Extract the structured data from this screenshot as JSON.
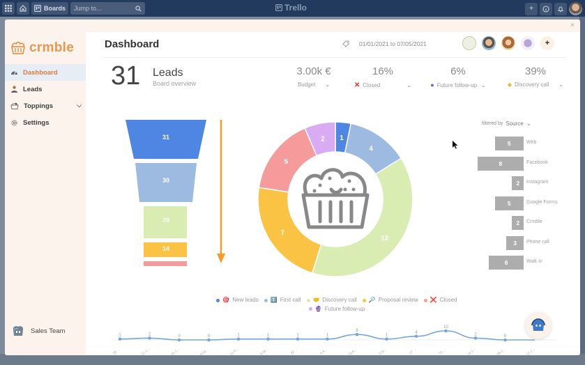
{
  "trello_bar": {
    "boards_label": "Boards",
    "search_placeholder": "Jump to...",
    "logo": "Trello",
    "icons": [
      "apps-grid-icon",
      "home-icon",
      "board-icon",
      "search-icon",
      "plus-icon",
      "info-icon",
      "bell-icon",
      "user-avatar"
    ]
  },
  "modal": {
    "close_icon": "×"
  },
  "sidebar": {
    "brand": "crmble",
    "items": [
      {
        "label": "Dashboard",
        "icon": "gauge-icon",
        "active": true
      },
      {
        "label": "Leads",
        "icon": "person-icon",
        "active": false
      },
      {
        "label": "Toppings",
        "icon": "basket-icon",
        "active": false,
        "has_chevron": true
      },
      {
        "label": "Settings",
        "icon": "gear-icon",
        "active": false
      }
    ],
    "team": "Sales Team"
  },
  "header": {
    "title": "Dashboard",
    "date_range": "01/01/2021 to 07/05/2021",
    "add_member": "+"
  },
  "kpis": {
    "leads_count": "31",
    "leads_label": "Leads",
    "leads_sub": "Board overview",
    "items": [
      {
        "value": "3.00k €",
        "label": "Budget",
        "icon": ""
      },
      {
        "value": "16%",
        "label": "Closed",
        "icon": "✕"
      },
      {
        "value": "6%",
        "label": "Future follow-up",
        "icon": "●"
      },
      {
        "value": "39%",
        "label": "Discovery call",
        "icon": "◆"
      }
    ]
  },
  "colors": {
    "new_leads": "#4f86e3",
    "first_call": "#9dbbe0",
    "discovery_call": "#d9ecb1",
    "proposal_review": "#fbc344",
    "closed": "#f59b9b",
    "future_follow_up": "#d8abf3",
    "brand": "#e8974f",
    "source_bar": "#adadad",
    "timeline": "#79a6d6"
  },
  "chart_data": [
    {
      "type": "funnel",
      "title": "Lead funnel",
      "categories": [
        "New leads",
        "First call",
        "Discovery call",
        "Proposal review",
        "Closed"
      ],
      "values": [
        31,
        30,
        20,
        14,
        5
      ],
      "labels": [
        "31",
        "30",
        "20",
        "14",
        ""
      ]
    },
    {
      "type": "pie",
      "subtype": "donut",
      "categories": [
        "New leads",
        "First call",
        "Discovery call",
        "Proposal review",
        "Closed",
        "Future follow-up"
      ],
      "values": [
        1,
        4,
        12,
        7,
        5,
        2
      ]
    },
    {
      "type": "bar",
      "orientation": "horizontal",
      "title": "filtered by Source",
      "filter_label": "filtered by",
      "filter_value": "Source",
      "categories": [
        "Web",
        "Facebook",
        "Instagram",
        "Google Forms",
        "Crmble",
        "Phone call",
        "Walk in"
      ],
      "values": [
        5,
        8,
        2,
        5,
        2,
        3,
        6
      ]
    },
    {
      "type": "line",
      "x": [
        "28 ...",
        "11 J...",
        "25 J...",
        "8 Fe...",
        "22 F...",
        "8 M...",
        "22 ...",
        "5 A...",
        "19 A...",
        "3 M...",
        "17 ...",
        "31 ...",
        "14 J...",
        "28 J...",
        "12 J..."
      ],
      "values": [
        1,
        2,
        0,
        0,
        1,
        1,
        1,
        1,
        6,
        1,
        4,
        10,
        2,
        0,
        0
      ],
      "labels": [
        "1",
        "2",
        "0",
        "0",
        "1",
        "1",
        "1",
        "1",
        "6",
        "1",
        "4",
        "10",
        "2",
        "0",
        ""
      ]
    }
  ],
  "legend": [
    {
      "label": "New leads",
      "emoji": "🎯"
    },
    {
      "label": "First call",
      "emoji": "1️⃣"
    },
    {
      "label": "Discovery call",
      "emoji": "🤝"
    },
    {
      "label": "Proposal review",
      "emoji": "🔎"
    },
    {
      "label": "Closed",
      "emoji": "❌"
    },
    {
      "label": "Future follow-up",
      "emoji": "🔮"
    }
  ]
}
